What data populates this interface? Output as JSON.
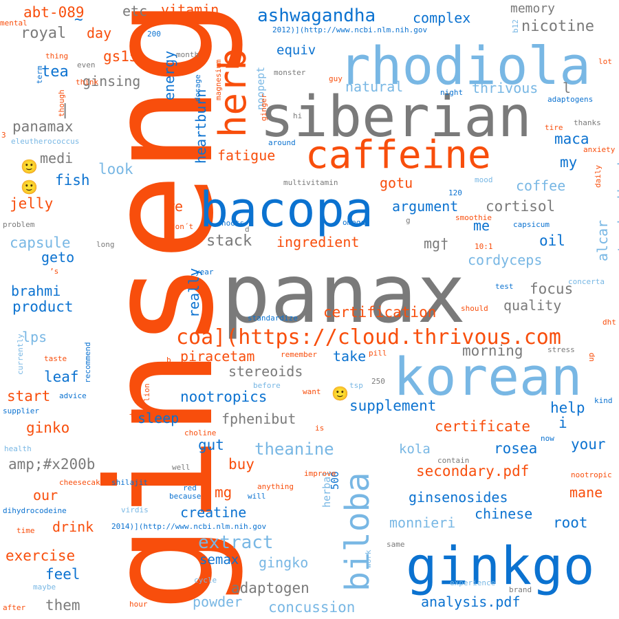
{
  "palette": {
    "orange": "#f84e0c",
    "blue": "#0b72d0",
    "lightblue": "#78b7e4",
    "gray": "#7a7a7a"
  },
  "words": [
    {
      "text": "ginseng",
      "color": "orange",
      "size": "xxl",
      "vertical": true
    },
    {
      "text": "panax",
      "color": "gray",
      "size": "xxl"
    },
    {
      "text": "siberian",
      "color": "gray",
      "size": "xl"
    },
    {
      "text": "rhodiola",
      "color": "lightblue",
      "size": "xl"
    },
    {
      "text": "korean",
      "color": "lightblue",
      "size": "xl"
    },
    {
      "text": "bacopa",
      "color": "blue",
      "size": "xl"
    },
    {
      "text": "ginkgo",
      "color": "blue",
      "size": "xl"
    },
    {
      "text": "caffeine",
      "color": "orange",
      "size": "l"
    },
    {
      "text": "herb",
      "color": "orange",
      "size": "l",
      "vertical": true
    },
    {
      "text": "biloba",
      "color": "lightblue",
      "size": "l",
      "vertical": true
    },
    {
      "text": "coa](https://cloud.thrivous.com",
      "color": "orange",
      "size": "m"
    },
    {
      "text": "ashwagandha",
      "color": "blue",
      "size": "m"
    },
    {
      "text": "abt-089",
      "color": "orange",
      "size": "m"
    },
    {
      "text": "etc",
      "color": "gray",
      "size": "s"
    },
    {
      "text": "vitamin",
      "color": "orange",
      "size": "s"
    },
    {
      "text": "complex",
      "color": "blue",
      "size": "s"
    },
    {
      "text": "memory",
      "color": "gray",
      "size": "s"
    },
    {
      "text": "nicotine",
      "color": "gray",
      "size": "s"
    },
    {
      "text": "royal",
      "color": "gray",
      "size": "s"
    },
    {
      "text": "day",
      "color": "orange",
      "size": "s"
    },
    {
      "text": "gs15",
      "color": "orange",
      "size": "s"
    },
    {
      "text": "tea",
      "color": "blue",
      "size": "s"
    },
    {
      "text": "ginsing",
      "color": "gray",
      "size": "s"
    },
    {
      "text": "energy",
      "color": "blue",
      "size": "s",
      "vertical": true
    },
    {
      "text": "equiv",
      "color": "blue",
      "size": "s"
    },
    {
      "text": "noopept",
      "color": "lightblue",
      "size": "xs",
      "vertical": true
    },
    {
      "text": "natural",
      "color": "lightblue",
      "size": "s"
    },
    {
      "text": "thrivous",
      "color": "lightblue",
      "size": "s"
    },
    {
      "text": "panamax",
      "color": "gray",
      "size": "s"
    },
    {
      "text": "heartburn",
      "color": "blue",
      "size": "s",
      "vertical": true
    },
    {
      "text": "medi",
      "color": "gray",
      "size": "s"
    },
    {
      "text": "fatigue",
      "color": "orange",
      "size": "s"
    },
    {
      "text": "maca",
      "color": "blue",
      "size": "s"
    },
    {
      "text": "my",
      "color": "blue",
      "size": "s"
    },
    {
      "text": "look",
      "color": "lightblue",
      "size": "s"
    },
    {
      "text": "fish",
      "color": "blue",
      "size": "s"
    },
    {
      "text": "coffee",
      "color": "lightblue",
      "size": "s"
    },
    {
      "text": "jelly",
      "color": "orange",
      "size": "s"
    },
    {
      "text": "gotu",
      "color": "orange",
      "size": "s"
    },
    {
      "text": "argument",
      "color": "blue",
      "size": "s"
    },
    {
      "text": "cortisol",
      "color": "gray",
      "size": "s"
    },
    {
      "text": "standardised",
      "color": "lightblue",
      "size": "s",
      "vertical": true
    },
    {
      "text": "we",
      "color": "orange",
      "size": "s"
    },
    {
      "text": "me",
      "color": "blue",
      "size": "s"
    },
    {
      "text": "stack",
      "color": "gray",
      "size": "s"
    },
    {
      "text": "ingredient",
      "color": "orange",
      "size": "s"
    },
    {
      "text": "mg†",
      "color": "gray",
      "size": "s"
    },
    {
      "text": "oil",
      "color": "blue",
      "size": "s"
    },
    {
      "text": "alcar",
      "color": "lightblue",
      "size": "s",
      "vertical": true
    },
    {
      "text": "capsule",
      "color": "lightblue",
      "size": "s"
    },
    {
      "text": "geto",
      "color": "blue",
      "size": "s"
    },
    {
      "text": "cordyceps",
      "color": "lightblue",
      "size": "s"
    },
    {
      "text": "brahmi",
      "color": "blue",
      "size": "s"
    },
    {
      "text": "product",
      "color": "blue",
      "size": "s"
    },
    {
      "text": "focus",
      "color": "gray",
      "size": "s"
    },
    {
      "text": "quality",
      "color": "gray",
      "size": "s"
    },
    {
      "text": "really",
      "color": "blue",
      "size": "s",
      "vertical": true
    },
    {
      "text": "certification",
      "color": "orange",
      "size": "s"
    },
    {
      "text": "lps",
      "color": "lightblue",
      "size": "s"
    },
    {
      "text": "piracetam",
      "color": "orange",
      "size": "s"
    },
    {
      "text": "take",
      "color": "blue",
      "size": "s"
    },
    {
      "text": "morning",
      "color": "gray",
      "size": "s"
    },
    {
      "text": "leaf",
      "color": "blue",
      "size": "s"
    },
    {
      "text": "stereoids",
      "color": "gray",
      "size": "s"
    },
    {
      "text": "start",
      "color": "orange",
      "size": "s"
    },
    {
      "text": "nootropics",
      "color": "blue",
      "size": "s"
    },
    {
      "text": "supplement",
      "color": "blue",
      "size": "s"
    },
    {
      "text": "help",
      "color": "blue",
      "size": "s"
    },
    {
      "text": "ginko",
      "color": "orange",
      "size": "s"
    },
    {
      "text": "sleep",
      "color": "blue",
      "size": "s"
    },
    {
      "text": "fphenibut",
      "color": "gray",
      "size": "s"
    },
    {
      "text": "certificate",
      "color": "orange",
      "size": "s"
    },
    {
      "text": "gut",
      "color": "blue",
      "size": "s"
    },
    {
      "text": "theanine",
      "color": "lightblue",
      "size": "s"
    },
    {
      "text": "kola",
      "color": "lightblue",
      "size": "s"
    },
    {
      "text": "rosea",
      "color": "blue",
      "size": "s"
    },
    {
      "text": "your",
      "color": "blue",
      "size": "s"
    },
    {
      "text": "amp;#x200b",
      "color": "gray",
      "size": "s"
    },
    {
      "text": "buy",
      "color": "orange",
      "size": "s"
    },
    {
      "text": "secondary.pdf",
      "color": "orange",
      "size": "s"
    },
    {
      "text": "our",
      "color": "orange",
      "size": "s"
    },
    {
      "text": "mg",
      "color": "orange",
      "size": "s"
    },
    {
      "text": "500",
      "color": "blue",
      "size": "xs",
      "vertical": true
    },
    {
      "text": "herbal",
      "color": "lightblue",
      "size": "xs",
      "vertical": true
    },
    {
      "text": "ginsenosides",
      "color": "blue",
      "size": "s"
    },
    {
      "text": "mane",
      "color": "orange",
      "size": "s"
    },
    {
      "text": "creatine",
      "color": "blue",
      "size": "s"
    },
    {
      "text": "chinese",
      "color": "blue",
      "size": "s"
    },
    {
      "text": "drink",
      "color": "orange",
      "size": "s"
    },
    {
      "text": "monnieri",
      "color": "lightblue",
      "size": "s"
    },
    {
      "text": "root",
      "color": "blue",
      "size": "s"
    },
    {
      "text": "extract",
      "color": "lightblue",
      "size": "m"
    },
    {
      "text": "exercise",
      "color": "orange",
      "size": "s"
    },
    {
      "text": "semax",
      "color": "blue",
      "size": "s"
    },
    {
      "text": "gingko",
      "color": "lightblue",
      "size": "s"
    },
    {
      "text": "feel",
      "color": "blue",
      "size": "s"
    },
    {
      "text": "adaptogen",
      "color": "gray",
      "size": "s"
    },
    {
      "text": "powder",
      "color": "lightblue",
      "size": "s"
    },
    {
      "text": "them",
      "color": "gray",
      "size": "s"
    },
    {
      "text": "concussion",
      "color": "lightblue",
      "size": "s"
    },
    {
      "text": "analysis.pdf",
      "color": "blue",
      "size": "s"
    },
    {
      "text": "2012)](http://www.ncbi.nlm.nih.gov",
      "color": "blue",
      "size": "t"
    },
    {
      "text": "2014)](http://www.ncbi.nlm.nih.gov",
      "color": "blue",
      "size": "t"
    },
    {
      "text": "mental",
      "color": "orange",
      "size": "t"
    },
    {
      "text": "200",
      "color": "blue",
      "size": "t"
    },
    {
      "text": "b12",
      "color": "lightblue",
      "size": "t",
      "vertical": true
    },
    {
      "text": "thing",
      "color": "orange",
      "size": "t"
    },
    {
      "text": "even",
      "color": "gray",
      "size": "t"
    },
    {
      "text": "month",
      "color": "gray",
      "size": "t"
    },
    {
      "text": "lot",
      "color": "orange",
      "size": "t"
    },
    {
      "text": "term",
      "color": "blue",
      "size": "t",
      "vertical": true
    },
    {
      "text": "guy",
      "color": "orange",
      "size": "t"
    },
    {
      "text": "monster",
      "color": "gray",
      "size": "t"
    },
    {
      "text": "magnesium",
      "color": "orange",
      "size": "t",
      "vertical": true
    },
    {
      "text": "dosage",
      "color": "blue",
      "size": "t",
      "vertical": true
    },
    {
      "text": "think",
      "color": "orange",
      "size": "t"
    },
    {
      "text": "though",
      "color": "orange",
      "size": "t",
      "vertical": true
    },
    {
      "text": "night",
      "color": "blue",
      "size": "t"
    },
    {
      "text": "adaptogens",
      "color": "blue",
      "size": "t"
    },
    {
      "text": "ginger",
      "color": "orange",
      "size": "t",
      "vertical": true
    },
    {
      "text": "hi",
      "color": "gray",
      "size": "t"
    },
    {
      "text": "tire",
      "color": "orange",
      "size": "t"
    },
    {
      "text": "thanks",
      "color": "gray",
      "size": "t"
    },
    {
      "text": "3",
      "color": "orange",
      "size": "t"
    },
    {
      "text": "eleutherococcus",
      "color": "lightblue",
      "size": "t"
    },
    {
      "text": "around",
      "color": "blue",
      "size": "t"
    },
    {
      "text": "anxiety",
      "color": "orange",
      "size": "t"
    },
    {
      "text": "daily",
      "color": "orange",
      "size": "t",
      "vertical": true
    },
    {
      "text": "mood",
      "color": "lightblue",
      "size": "t"
    },
    {
      "text": "multivitamin",
      "color": "gray",
      "size": "t"
    },
    {
      "text": "120",
      "color": "blue",
      "size": "t"
    },
    {
      "text": "smoothie",
      "color": "orange",
      "size": "t"
    },
    {
      "text": "noots",
      "color": "blue",
      "size": "t"
    },
    {
      "text": "d",
      "color": "gray",
      "size": "t"
    },
    {
      "text": "omega",
      "color": "blue",
      "size": "t"
    },
    {
      "text": "g",
      "color": "gray",
      "size": "t"
    },
    {
      "text": "capsicum",
      "color": "blue",
      "size": "t"
    },
    {
      "text": "problem",
      "color": "gray",
      "size": "t"
    },
    {
      "text": "don´t",
      "color": "orange",
      "size": "t"
    },
    {
      "text": "long",
      "color": "gray",
      "size": "t"
    },
    {
      "text": "10:1",
      "color": "orange",
      "size": "t"
    },
    {
      "text": "’s",
      "color": "orange",
      "size": "t"
    },
    {
      "text": "year",
      "color": "blue",
      "size": "t"
    },
    {
      "text": "test",
      "color": "blue",
      "size": "t"
    },
    {
      "text": "concerta",
      "color": "lightblue",
      "size": "t"
    },
    {
      "text": "should",
      "color": "orange",
      "size": "t"
    },
    {
      "text": "currently",
      "color": "lightblue",
      "size": "t",
      "vertical": true
    },
    {
      "text": "standardize",
      "color": "blue",
      "size": "t"
    },
    {
      "text": "dht",
      "color": "orange",
      "size": "t"
    },
    {
      "text": "recommend",
      "color": "blue",
      "size": "t",
      "vertical": true
    },
    {
      "text": "taste",
      "color": "orange",
      "size": "t"
    },
    {
      "text": "b",
      "color": "orange",
      "size": "t"
    },
    {
      "text": "remember",
      "color": "orange",
      "size": "t"
    },
    {
      "text": "stress",
      "color": "gray",
      "size": "t"
    },
    {
      "text": "lion",
      "color": "orange",
      "size": "t",
      "vertical": true
    },
    {
      "text": "up",
      "color": "orange",
      "size": "t",
      "vertical": true
    },
    {
      "text": "pill",
      "color": "orange",
      "size": "t"
    },
    {
      "text": "before",
      "color": "lightblue",
      "size": "t"
    },
    {
      "text": "250",
      "color": "gray",
      "size": "t"
    },
    {
      "text": "tsp",
      "color": "lightblue",
      "size": "t"
    },
    {
      "text": "want",
      "color": "orange",
      "size": "t"
    },
    {
      "text": "advice",
      "color": "blue",
      "size": "t"
    },
    {
      "text": "kind",
      "color": "blue",
      "size": "t"
    },
    {
      "text": "supplier",
      "color": "blue",
      "size": "t"
    },
    {
      "text": "is",
      "color": "orange",
      "size": "t"
    },
    {
      "text": "choline",
      "color": "orange",
      "size": "t"
    },
    {
      "text": "now",
      "color": "blue",
      "size": "t"
    },
    {
      "text": "health",
      "color": "lightblue",
      "size": "t"
    },
    {
      "text": "contain",
      "color": "gray",
      "size": "t"
    },
    {
      "text": "well",
      "color": "gray",
      "size": "t"
    },
    {
      "text": "improve",
      "color": "orange",
      "size": "t"
    },
    {
      "text": "nootropic",
      "color": "orange",
      "size": "t"
    },
    {
      "text": "cheesecake",
      "color": "orange",
      "size": "t"
    },
    {
      "text": "shilajit",
      "color": "blue",
      "size": "t"
    },
    {
      "text": "red",
      "color": "blue",
      "size": "t"
    },
    {
      "text": "anything",
      "color": "orange",
      "size": "t"
    },
    {
      "text": "because",
      "color": "blue",
      "size": "t"
    },
    {
      "text": "will",
      "color": "blue",
      "size": "t"
    },
    {
      "text": "dihydrocodeine",
      "color": "blue",
      "size": "t"
    },
    {
      "text": "virdis",
      "color": "lightblue",
      "size": "t"
    },
    {
      "text": "time",
      "color": "orange",
      "size": "t"
    },
    {
      "text": "same",
      "color": "gray",
      "size": "t"
    },
    {
      "text": "work",
      "color": "lightblue",
      "size": "t",
      "vertical": true
    },
    {
      "text": "cycle",
      "color": "lightblue",
      "size": "t"
    },
    {
      "text": "experience",
      "color": "lightblue",
      "size": "t"
    },
    {
      "text": "maybe",
      "color": "lightblue",
      "size": "t"
    },
    {
      "text": "brand",
      "color": "gray",
      "size": "t"
    },
    {
      "text": "after",
      "color": "orange",
      "size": "t"
    },
    {
      "text": "hour",
      "color": "orange",
      "size": "t"
    },
    {
      "text": "~",
      "color": "blue",
      "size": "s"
    },
    {
      "text": "|",
      "color": "gray",
      "size": "s"
    },
    {
      "text": "l",
      "color": "gray",
      "size": "s"
    },
    {
      "text": "i",
      "color": "blue",
      "size": "s"
    },
    {
      "text": "+",
      "color": "orange",
      "size": "t"
    },
    {
      "text": "🙂",
      "color": "orange",
      "size": "s"
    },
    {
      "text": "🙂",
      "color": "orange",
      "size": "s"
    },
    {
      "text": "🙂",
      "color": "orange",
      "size": "s"
    }
  ]
}
